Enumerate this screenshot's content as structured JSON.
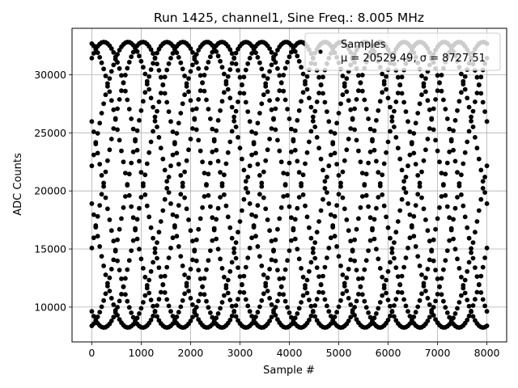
{
  "chart_data": {
    "type": "scatter",
    "title": "Run 1425, channel1, Sine Freq.: 8.005 MHz",
    "xlabel": "Sample #",
    "ylabel": "ADC Counts",
    "xlim": [
      -400,
      8400
    ],
    "ylim": [
      7000,
      34000
    ],
    "xticks": [
      0,
      1000,
      2000,
      3000,
      4000,
      5000,
      6000,
      7000,
      8000
    ],
    "yticks": [
      10000,
      15000,
      20000,
      25000,
      30000
    ],
    "xtick_labels": [
      "0",
      "1000",
      "2000",
      "3000",
      "4000",
      "5000",
      "6000",
      "7000",
      "8000"
    ],
    "ytick_labels": [
      "10000",
      "15000",
      "20000",
      "25000",
      "30000"
    ],
    "grid": true,
    "legend": {
      "placement": "top-right",
      "series_name": "Samples",
      "stats_text": "μ = 20529.49, σ = 8727.51"
    },
    "series": [
      {
        "name": "Samples",
        "color": "#000000",
        "marker": "circle",
        "mean": 20529.49,
        "amplitude": 12290,
        "period_samples": 3200,
        "x_range": [
          0,
          8000
        ],
        "phase_branches_deg": [
          -26.3,
          -81.2,
          153.7,
          98.8,
          62.5,
          7.6,
          -117.5,
          -172.4
        ],
        "x": [
          0,
          400,
          800,
          1200,
          1600,
          2000,
          2400,
          2800,
          3200,
          3600,
          4000,
          4400,
          4800,
          5200,
          5600,
          6000,
          6400,
          6800,
          7200,
          7600,
          8000
        ],
        "y_branch_1": [
          27970,
          30660,
          32710,
          32710,
          30660,
          27970,
          24600,
          20530,
          16460,
          13090,
          10400,
          8350,
          8350,
          10400,
          13090,
          16460,
          20530,
          24600,
          27970,
          30660,
          27970
        ]
      }
    ]
  }
}
